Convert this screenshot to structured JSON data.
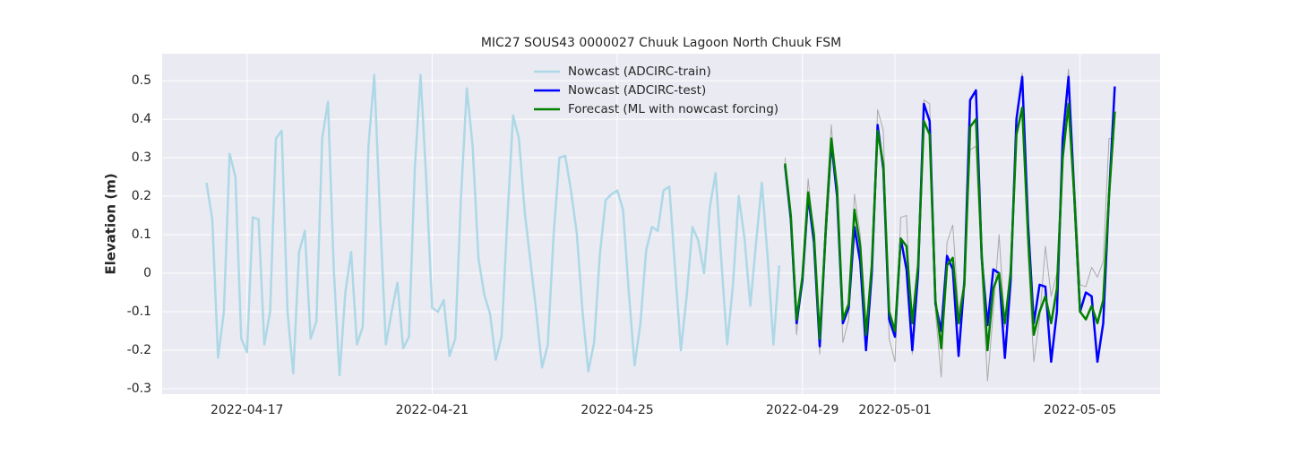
{
  "chart_data": {
    "type": "line",
    "title": "MIC27 SOUS43 0000027 Chuuk Lagoon North Chuuk FSM",
    "y_label": "Elevation (m)",
    "xlim": [
      "2022-04-15T04:00",
      "2022-05-06T17:30"
    ],
    "xticks": [
      "2022-04-17",
      "2022-04-21",
      "2022-04-25",
      "2022-04-29",
      "2022-05-01",
      "2022-05-05"
    ],
    "ylim": [
      -0.314,
      0.57
    ],
    "yticks": [
      -0.3,
      -0.2,
      -0.1,
      0.0,
      0.1,
      0.2,
      0.3,
      0.4,
      0.5
    ],
    "grid": true,
    "legend": "upper center",
    "background": "#eaeaf2",
    "series": [
      {
        "name": "Nowcast (ADCIRC-train)",
        "color": "#add8e6",
        "x": [
          "2022-04-16T03:00",
          "2022-04-16T06:00",
          "2022-04-16T09:00",
          "2022-04-16T12:00",
          "2022-04-16T15:00",
          "2022-04-16T18:00",
          "2022-04-16T21:00",
          "2022-04-17T00:00",
          "2022-04-17T03:00",
          "2022-04-17T06:00",
          "2022-04-17T09:00",
          "2022-04-17T12:00",
          "2022-04-17T15:00",
          "2022-04-17T18:00",
          "2022-04-17T21:00",
          "2022-04-18T00:00",
          "2022-04-18T03:00",
          "2022-04-18T06:00",
          "2022-04-18T09:00",
          "2022-04-18T12:00",
          "2022-04-18T15:00",
          "2022-04-18T18:00",
          "2022-04-18T21:00",
          "2022-04-19T00:00",
          "2022-04-19T03:00",
          "2022-04-19T06:00",
          "2022-04-19T09:00",
          "2022-04-19T12:00",
          "2022-04-19T15:00",
          "2022-04-19T18:00",
          "2022-04-19T21:00",
          "2022-04-20T00:00",
          "2022-04-20T03:00",
          "2022-04-20T06:00",
          "2022-04-20T09:00",
          "2022-04-20T12:00",
          "2022-04-20T15:00",
          "2022-04-20T18:00",
          "2022-04-20T21:00",
          "2022-04-21T00:00",
          "2022-04-21T03:00",
          "2022-04-21T06:00",
          "2022-04-21T09:00",
          "2022-04-21T12:00",
          "2022-04-21T15:00",
          "2022-04-21T18:00",
          "2022-04-21T21:00",
          "2022-04-22T00:00",
          "2022-04-22T03:00",
          "2022-04-22T06:00",
          "2022-04-22T09:00",
          "2022-04-22T12:00",
          "2022-04-22T15:00",
          "2022-04-22T18:00",
          "2022-04-22T21:00",
          "2022-04-23T00:00",
          "2022-04-23T03:00",
          "2022-04-23T06:00",
          "2022-04-23T09:00",
          "2022-04-23T12:00",
          "2022-04-23T15:00",
          "2022-04-23T18:00",
          "2022-04-23T21:00",
          "2022-04-24T00:00",
          "2022-04-24T03:00",
          "2022-04-24T06:00",
          "2022-04-24T09:00",
          "2022-04-24T12:00",
          "2022-04-24T15:00",
          "2022-04-24T18:00",
          "2022-04-24T21:00",
          "2022-04-25T00:00",
          "2022-04-25T03:00",
          "2022-04-25T06:00",
          "2022-04-25T09:00",
          "2022-04-25T12:00",
          "2022-04-25T15:00",
          "2022-04-25T18:00",
          "2022-04-25T21:00",
          "2022-04-26T00:00",
          "2022-04-26T03:00",
          "2022-04-26T06:00",
          "2022-04-26T09:00",
          "2022-04-26T12:00",
          "2022-04-26T15:00",
          "2022-04-26T18:00",
          "2022-04-26T21:00",
          "2022-04-27T00:00",
          "2022-04-27T03:00",
          "2022-04-27T06:00",
          "2022-04-27T09:00",
          "2022-04-27T12:00",
          "2022-04-27T15:00",
          "2022-04-27T18:00",
          "2022-04-27T21:00",
          "2022-04-28T00:00",
          "2022-04-28T03:00",
          "2022-04-28T06:00",
          "2022-04-28T09:00",
          "2022-04-28T12:00"
        ],
        "values": [
          0.235,
          0.14,
          -0.22,
          -0.1,
          0.31,
          0.25,
          -0.17,
          -0.205,
          0.145,
          0.14,
          -0.185,
          -0.1,
          0.35,
          0.37,
          -0.1,
          -0.26,
          0.055,
          0.11,
          -0.17,
          -0.125,
          0.35,
          0.445,
          0.01,
          -0.265,
          -0.05,
          0.055,
          -0.185,
          -0.14,
          0.33,
          0.515,
          0.15,
          -0.185,
          -0.1,
          -0.025,
          -0.195,
          -0.165,
          0.27,
          0.515,
          0.24,
          -0.09,
          -0.1,
          -0.07,
          -0.215,
          -0.17,
          0.2,
          0.48,
          0.33,
          0.04,
          -0.055,
          -0.105,
          -0.225,
          -0.165,
          0.14,
          0.41,
          0.35,
          0.16,
          0.03,
          -0.1,
          -0.245,
          -0.185,
          0.1,
          0.3,
          0.305,
          0.215,
          0.105,
          -0.1,
          -0.255,
          -0.18,
          0.05,
          0.19,
          0.205,
          0.215,
          0.165,
          -0.05,
          -0.24,
          -0.13,
          0.06,
          0.12,
          0.11,
          0.215,
          0.225,
          0.01,
          -0.2,
          -0.06,
          0.12,
          0.085,
          0.0,
          0.17,
          0.26,
          0.03,
          -0.185,
          -0.03,
          0.2,
          0.09,
          -0.085,
          0.08,
          0.235,
          0.04,
          -0.185,
          0.02
        ],
        "width": 2.5
      },
      {
        "color": "#aaaaaa",
        "x": [
          "2022-04-28T15:00",
          "2022-04-28T18:00",
          "2022-04-28T21:00",
          "2022-04-29T00:00",
          "2022-04-29T03:00",
          "2022-04-29T06:00",
          "2022-04-29T09:00",
          "2022-04-29T12:00",
          "2022-04-29T15:00",
          "2022-04-29T18:00",
          "2022-04-29T21:00",
          "2022-04-30T00:00",
          "2022-04-30T03:00",
          "2022-04-30T06:00",
          "2022-04-30T09:00",
          "2022-04-30T12:00",
          "2022-04-30T15:00",
          "2022-04-30T18:00",
          "2022-04-30T21:00",
          "2022-05-01T00:00",
          "2022-05-01T03:00",
          "2022-05-01T06:00",
          "2022-05-01T09:00",
          "2022-05-01T12:00",
          "2022-05-01T15:00",
          "2022-05-01T18:00",
          "2022-05-01T21:00",
          "2022-05-02T00:00",
          "2022-05-02T03:00",
          "2022-05-02T06:00",
          "2022-05-02T09:00",
          "2022-05-02T12:00",
          "2022-05-02T15:00",
          "2022-05-02T18:00",
          "2022-05-02T21:00",
          "2022-05-03T00:00",
          "2022-05-03T03:00",
          "2022-05-03T06:00",
          "2022-05-03T09:00",
          "2022-05-03T12:00",
          "2022-05-03T15:00",
          "2022-05-03T18:00",
          "2022-05-03T21:00",
          "2022-05-04T00:00",
          "2022-05-04T03:00",
          "2022-05-04T06:00",
          "2022-05-04T09:00",
          "2022-05-04T12:00",
          "2022-05-04T15:00",
          "2022-05-04T18:00",
          "2022-05-04T21:00",
          "2022-05-05T00:00",
          "2022-05-05T03:00",
          "2022-05-05T06:00",
          "2022-05-05T09:00",
          "2022-05-05T12:00",
          "2022-05-05T15:00",
          "2022-05-05T18:00"
        ],
        "values": [
          0.3,
          0.12,
          -0.16,
          0.0,
          0.245,
          0.1,
          -0.21,
          0.15,
          0.385,
          0.2,
          -0.18,
          -0.12,
          0.205,
          0.1,
          -0.13,
          0.0,
          0.425,
          0.37,
          -0.17,
          -0.23,
          0.145,
          0.15,
          -0.21,
          0.0,
          0.45,
          0.44,
          -0.1,
          -0.27,
          0.08,
          0.125,
          -0.1,
          -0.02,
          0.32,
          0.33,
          0.0,
          -0.28,
          -0.1,
          0.1,
          -0.14,
          0.03,
          0.4,
          0.52,
          0.05,
          -0.23,
          -0.12,
          0.07,
          -0.06,
          0.0,
          0.35,
          0.53,
          0.25,
          -0.03,
          -0.035,
          0.015,
          -0.01,
          0.03,
          0.35,
          0.35
        ],
        "width": 1
      },
      {
        "name": "Nowcast (ADCIRC-test)",
        "color": "#0000ff",
        "x": [
          "2022-04-28T15:00",
          "2022-04-28T18:00",
          "2022-04-28T21:00",
          "2022-04-29T00:00",
          "2022-04-29T03:00",
          "2022-04-29T06:00",
          "2022-04-29T09:00",
          "2022-04-29T12:00",
          "2022-04-29T15:00",
          "2022-04-29T18:00",
          "2022-04-29T21:00",
          "2022-04-30T00:00",
          "2022-04-30T03:00",
          "2022-04-30T06:00",
          "2022-04-30T09:00",
          "2022-04-30T12:00",
          "2022-04-30T15:00",
          "2022-04-30T18:00",
          "2022-04-30T21:00",
          "2022-05-01T00:00",
          "2022-05-01T03:00",
          "2022-05-01T06:00",
          "2022-05-01T09:00",
          "2022-05-01T12:00",
          "2022-05-01T15:00",
          "2022-05-01T18:00",
          "2022-05-01T21:00",
          "2022-05-02T00:00",
          "2022-05-02T03:00",
          "2022-05-02T06:00",
          "2022-05-02T09:00",
          "2022-05-02T12:00",
          "2022-05-02T15:00",
          "2022-05-02T18:00",
          "2022-05-02T21:00",
          "2022-05-03T00:00",
          "2022-05-03T03:00",
          "2022-05-03T06:00",
          "2022-05-03T09:00",
          "2022-05-03T12:00",
          "2022-05-03T15:00",
          "2022-05-03T18:00",
          "2022-05-03T21:00",
          "2022-05-04T00:00",
          "2022-05-04T03:00",
          "2022-05-04T06:00",
          "2022-05-04T09:00",
          "2022-05-04T12:00",
          "2022-05-04T15:00",
          "2022-05-04T18:00",
          "2022-05-04T21:00",
          "2022-05-05T00:00",
          "2022-05-05T03:00",
          "2022-05-05T06:00",
          "2022-05-05T09:00",
          "2022-05-05T12:00",
          "2022-05-05T15:00",
          "2022-05-05T18:00"
        ],
        "values": [
          0.28,
          0.14,
          -0.13,
          -0.02,
          0.2,
          0.08,
          -0.19,
          0.1,
          0.34,
          0.2,
          -0.13,
          -0.09,
          0.12,
          0.03,
          -0.2,
          0.0,
          0.385,
          0.27,
          -0.12,
          -0.165,
          0.09,
          0.01,
          -0.2,
          0.0,
          0.44,
          0.395,
          -0.08,
          -0.15,
          0.045,
          0.01,
          -0.215,
          -0.02,
          0.45,
          0.475,
          0.04,
          -0.135,
          0.01,
          0.0,
          -0.22,
          -0.02,
          0.4,
          0.51,
          0.13,
          -0.13,
          -0.03,
          -0.035,
          -0.23,
          -0.1,
          0.35,
          0.51,
          0.2,
          -0.1,
          -0.05,
          -0.06,
          -0.23,
          -0.13,
          0.2,
          0.485
        ],
        "width": 2.5
      },
      {
        "name": "Forecast (ML with nowcast forcing)",
        "color": "#008000",
        "x": [
          "2022-04-28T15:00",
          "2022-04-28T18:00",
          "2022-04-28T21:00",
          "2022-04-29T00:00",
          "2022-04-29T03:00",
          "2022-04-29T06:00",
          "2022-04-29T09:00",
          "2022-04-29T12:00",
          "2022-04-29T15:00",
          "2022-04-29T18:00",
          "2022-04-29T21:00",
          "2022-04-30T00:00",
          "2022-04-30T03:00",
          "2022-04-30T06:00",
          "2022-04-30T09:00",
          "2022-04-30T12:00",
          "2022-04-30T15:00",
          "2022-04-30T18:00",
          "2022-04-30T21:00",
          "2022-05-01T00:00",
          "2022-05-01T03:00",
          "2022-05-01T06:00",
          "2022-05-01T09:00",
          "2022-05-01T12:00",
          "2022-05-01T15:00",
          "2022-05-01T18:00",
          "2022-05-01T21:00",
          "2022-05-02T00:00",
          "2022-05-02T03:00",
          "2022-05-02T06:00",
          "2022-05-02T09:00",
          "2022-05-02T12:00",
          "2022-05-02T15:00",
          "2022-05-02T18:00",
          "2022-05-02T21:00",
          "2022-05-03T00:00",
          "2022-05-03T03:00",
          "2022-05-03T06:00",
          "2022-05-03T09:00",
          "2022-05-03T12:00",
          "2022-05-03T15:00",
          "2022-05-03T18:00",
          "2022-05-03T21:00",
          "2022-05-04T00:00",
          "2022-05-04T03:00",
          "2022-05-04T06:00",
          "2022-05-04T09:00",
          "2022-05-04T12:00",
          "2022-05-04T15:00",
          "2022-05-04T18:00",
          "2022-05-04T21:00",
          "2022-05-05T00:00",
          "2022-05-05T03:00",
          "2022-05-05T06:00",
          "2022-05-05T09:00",
          "2022-05-05T12:00",
          "2022-05-05T15:00",
          "2022-05-05T18:00"
        ],
        "values": [
          0.285,
          0.15,
          -0.12,
          -0.01,
          0.21,
          0.1,
          -0.17,
          0.1,
          0.35,
          0.22,
          -0.12,
          -0.08,
          0.165,
          0.07,
          -0.16,
          0.02,
          0.37,
          0.28,
          -0.1,
          -0.15,
          0.09,
          0.07,
          -0.13,
          0.02,
          0.395,
          0.36,
          -0.07,
          -0.195,
          0.02,
          0.04,
          -0.13,
          -0.03,
          0.38,
          0.4,
          0.05,
          -0.2,
          -0.04,
          0.0,
          -0.13,
          0.0,
          0.36,
          0.43,
          0.1,
          -0.16,
          -0.1,
          -0.06,
          -0.13,
          -0.04,
          0.3,
          0.44,
          0.2,
          -0.1,
          -0.12,
          -0.085,
          -0.13,
          -0.07,
          0.2,
          0.42
        ],
        "width": 2.5
      }
    ]
  }
}
